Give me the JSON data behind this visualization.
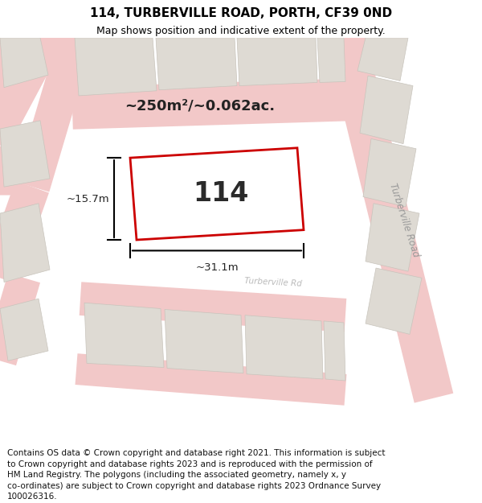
{
  "title_line1": "114, TURBERVILLE ROAD, PORTH, CF39 0ND",
  "title_line2": "Map shows position and indicative extent of the property.",
  "map_bg_color": "#f0ede8",
  "building_color": "#dedad3",
  "building_edge": "#c8c4bc",
  "road_color": "#f2c8c8",
  "plot_outline_color": "#cc0000",
  "plot_fill_color": "#ffffff",
  "plot_label": "114",
  "area_text": "~250m²/~0.062ac.",
  "dim_width": "~31.1m",
  "dim_height": "~15.7m",
  "road_label1": "Turberville Road",
  "road_label2": "Turberville Rd",
  "title_fontsize": 11,
  "subtitle_fontsize": 9,
  "footer_fontsize": 7.5,
  "footer_lines": [
    "Contains OS data © Crown copyright and database right 2021. This information is subject",
    "to Crown copyright and database rights 2023 and is reproduced with the permission of",
    "HM Land Registry. The polygons (including the associated geometry, namely x, y",
    "co-ordinates) are subject to Crown copyright and database rights 2023 Ordnance Survey",
    "100026316."
  ]
}
